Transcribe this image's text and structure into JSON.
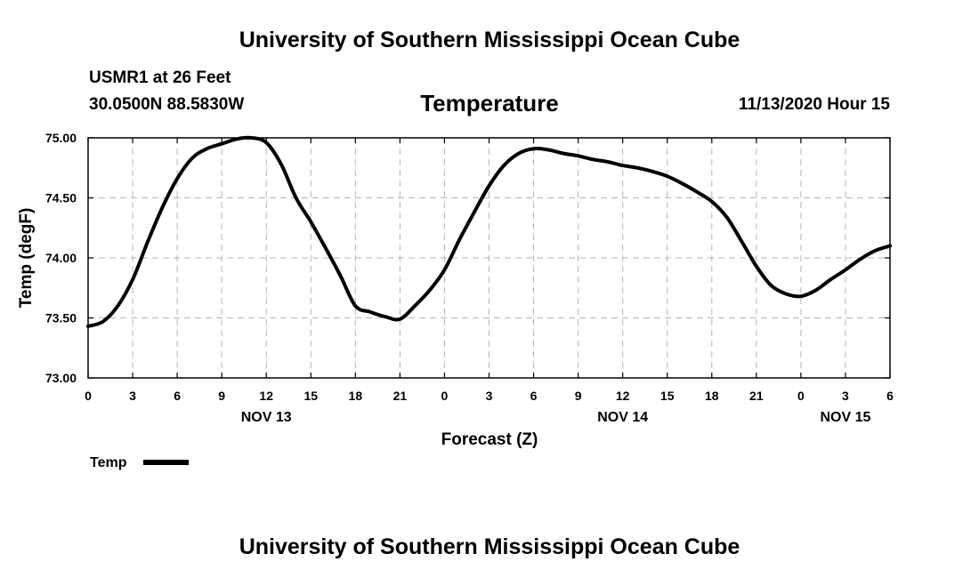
{
  "header": {
    "title": "University of Southern Mississippi Ocean Cube",
    "station": "USMR1 at 26 Feet",
    "coords": "30.0500N 88.5830W",
    "variable": "Temperature",
    "datetime": "11/13/2020 Hour 15"
  },
  "footer": {
    "title": "University of Southern Mississippi Ocean Cube"
  },
  "chart_data": {
    "type": "line",
    "title": "Temperature",
    "xlabel": "Forecast (Z)",
    "ylabel": "Temp (degF)",
    "ylim": [
      73.0,
      75.0
    ],
    "y_ticks": [
      "73.00",
      "73.50",
      "74.00",
      "74.50",
      "75.00"
    ],
    "x_unit": "hours since NOV 13 00Z",
    "xlim": [
      0,
      54
    ],
    "x_ticks": [
      0,
      3,
      6,
      9,
      12,
      15,
      18,
      21,
      24,
      27,
      30,
      33,
      36,
      39,
      42,
      45,
      48,
      51,
      54
    ],
    "x_tick_labels": [
      "0",
      "3",
      "6",
      "9",
      "12",
      "15",
      "18",
      "21",
      "0",
      "3",
      "6",
      "9",
      "12",
      "15",
      "18",
      "21",
      "0",
      "3",
      "6"
    ],
    "date_labels": [
      {
        "x": 12,
        "text": "NOV 13"
      },
      {
        "x": 36,
        "text": "NOV 14"
      },
      {
        "x": 51,
        "text": "NOV 15"
      }
    ],
    "grid": true,
    "legend": {
      "position": "bottom-left"
    },
    "series": [
      {
        "name": "Temp",
        "color": "#000000",
        "x": [
          0,
          1,
          2,
          3,
          4,
          5,
          6,
          7,
          8,
          9,
          10,
          11,
          12,
          13,
          14,
          15,
          16,
          17,
          18,
          19,
          20,
          21,
          22,
          23,
          24,
          25,
          26,
          27,
          28,
          29,
          30,
          31,
          32,
          33,
          34,
          35,
          36,
          37,
          38,
          39,
          40,
          41,
          42,
          43,
          44,
          45,
          46,
          47,
          48,
          49,
          50,
          51,
          52,
          53,
          54
        ],
        "values": [
          73.43,
          73.47,
          73.6,
          73.82,
          74.13,
          74.42,
          74.66,
          74.83,
          74.91,
          74.95,
          74.99,
          75.0,
          74.96,
          74.78,
          74.5,
          74.3,
          74.08,
          73.85,
          73.6,
          73.55,
          73.51,
          73.49,
          73.6,
          73.73,
          73.9,
          74.15,
          74.38,
          74.6,
          74.77,
          74.87,
          74.91,
          74.9,
          74.87,
          74.85,
          74.82,
          74.8,
          74.77,
          74.75,
          74.72,
          74.68,
          74.62,
          74.55,
          74.47,
          74.34,
          74.14,
          73.93,
          73.77,
          73.7,
          73.68,
          73.73,
          73.82,
          73.9,
          73.99,
          74.06,
          74.1
        ]
      }
    ]
  }
}
